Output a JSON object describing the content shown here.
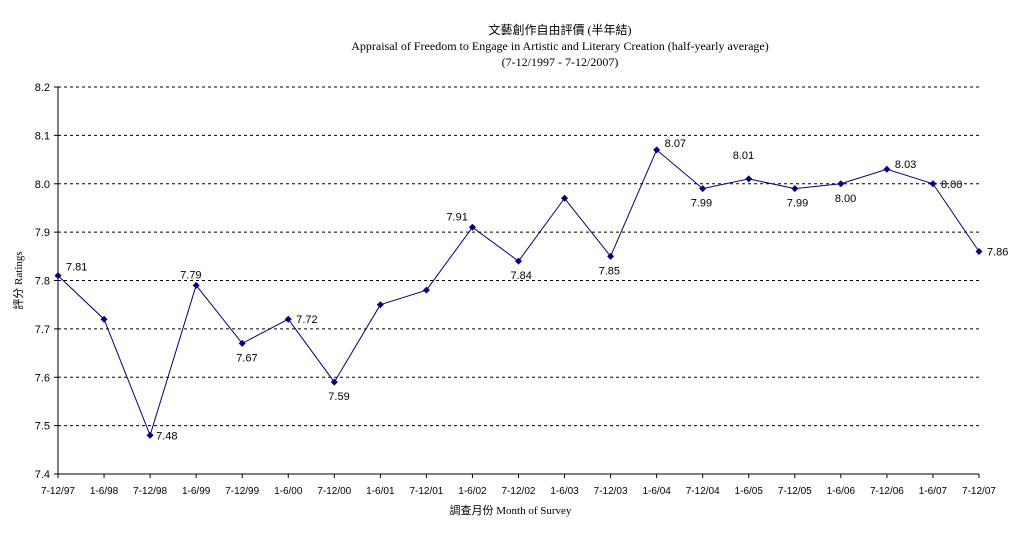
{
  "chart_data": {
    "type": "line",
    "title": "文藝創作自由評價 (半年結)",
    "subtitle": "Appraisal of Freedom to Engage in Artistic and Literary Creation (half-yearly average)",
    "subtitle2": "(7-12/1997 - 7-12/2007)",
    "xlabel": "調查月份 Month of Survey",
    "ylabel": "評分 Ratings",
    "ylim": [
      7.4,
      8.2
    ],
    "yticks": [
      "7.4",
      "7.5",
      "7.6",
      "7.7",
      "7.8",
      "7.9",
      "8.0",
      "8.1",
      "8.2"
    ],
    "grid": true,
    "categories": [
      "7-12/97",
      "1-6/98",
      "7-12/98",
      "1-6/99",
      "7-12/99",
      "1-6/00",
      "7-12/00",
      "1-6/01",
      "7-12/01",
      "1-6/02",
      "7-12/02",
      "1-6/03",
      "7-12/03",
      "1-6/04",
      "7-12/04",
      "1-6/05",
      "7-12/05",
      "1-6/06",
      "7-12/06",
      "1-6/07",
      "7-12/07"
    ],
    "values": [
      7.81,
      7.72,
      7.48,
      7.79,
      7.67,
      7.72,
      7.59,
      7.75,
      7.78,
      7.91,
      7.84,
      7.97,
      7.85,
      8.07,
      7.99,
      8.01,
      7.99,
      8.0,
      8.03,
      8.0,
      7.86
    ],
    "data_labels": [
      "7.81",
      "",
      "7.48",
      "7.79",
      "7.67",
      "7.72",
      "7.59",
      "",
      "",
      "7.91",
      "7.84",
      "",
      "7.85",
      "8.07",
      "7.99",
      "8.01",
      "7.99",
      "8.00",
      "8.03",
      "8.00",
      "7.86"
    ],
    "line_color": "#000080"
  }
}
